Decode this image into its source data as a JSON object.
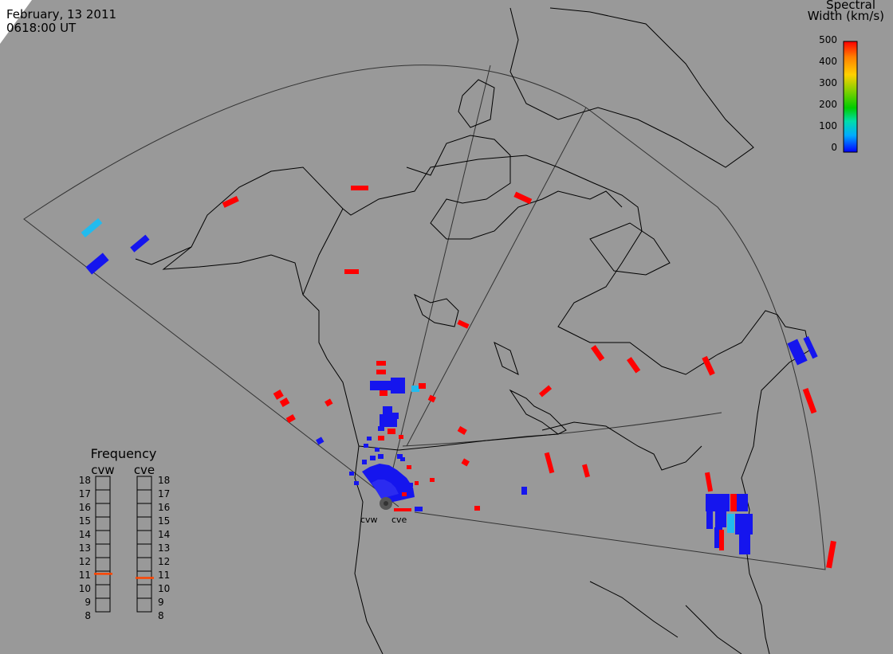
{
  "title": {
    "date": "February, 13 2011",
    "time": "0618:00 UT"
  },
  "colorbar": {
    "title_line1": "Spectral",
    "title_line2": "Width (km/s)",
    "ticks": [
      "500",
      "400",
      "300",
      "200",
      "100",
      "0"
    ],
    "colors": [
      "#ff0000",
      "#ff7f00",
      "#ffd000",
      "#7fd000",
      "#00cc00",
      "#00ddaa",
      "#00aaff",
      "#0000ff"
    ]
  },
  "radars": [
    {
      "code": "cvw",
      "frequency_mhz": 10.8,
      "color": "#ff4500"
    },
    {
      "code": "cve",
      "frequency_mhz": 10.5,
      "color": "#ff4500"
    }
  ],
  "frequency_panel": {
    "title": "Frequency",
    "ticks": [
      "18",
      "17",
      "16",
      "15",
      "14",
      "13",
      "12",
      "11",
      "10",
      "9",
      "8"
    ]
  },
  "map": {
    "background": "#999999",
    "land_outline_color": "#000000",
    "fov_color": "#333333",
    "marker_color": "#555555",
    "backscatter_colors": {
      "low": "#1515ee",
      "mid": "#22bbee",
      "high": "#ff0000"
    }
  }
}
